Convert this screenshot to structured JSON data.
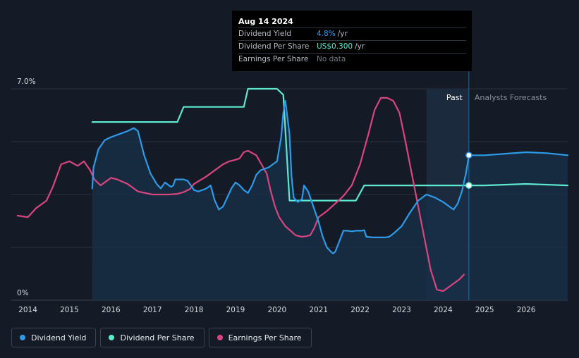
{
  "tooltip": {
    "date": "Aug 14 2024",
    "rows": [
      {
        "label": "Dividend Yield",
        "value": "4.8%",
        "unit": "/yr",
        "color": "#2e9be8"
      },
      {
        "label": "Dividend Per Share",
        "value": "US$0.300",
        "unit": "/yr",
        "color": "#5de8cf"
      },
      {
        "label": "Earnings Per Share",
        "value": "No data",
        "unit": "",
        "color": "#737884"
      }
    ]
  },
  "region_labels": {
    "past": "Past",
    "forecast": "Analysts Forecasts"
  },
  "legend": [
    {
      "label": "Dividend Yield",
      "color": "#2e9be8"
    },
    {
      "label": "Dividend Per Share",
      "color": "#5de8cf"
    },
    {
      "label": "Earnings Per Share",
      "color": "#d8457f"
    }
  ],
  "chart_data": {
    "type": "line",
    "title": "",
    "xlabel": "",
    "ylabel": "",
    "ylim": [
      0,
      7.0
    ],
    "xlim": [
      2013.6,
      2027.0
    ],
    "y_tick_labels": [
      {
        "value": 7.0,
        "label": "7.0%"
      },
      {
        "value": 0,
        "label": "0%"
      }
    ],
    "x_tick_labels": [
      "2014",
      "2015",
      "2016",
      "2017",
      "2018",
      "2019",
      "2020",
      "2021",
      "2022",
      "2023",
      "2024",
      "2025",
      "2026"
    ],
    "x_ticks": [
      2014,
      2015,
      2016,
      2017,
      2018,
      2019,
      2020,
      2021,
      2022,
      2023,
      2024,
      2025,
      2026
    ],
    "past_end": 2024.62,
    "forecast_shade_start": 2023.6,
    "highlight_x": 2024.62,
    "series": [
      {
        "name": "Dividend Yield",
        "color": "#2e9be8",
        "x": [
          2015.55,
          2015.58,
          2015.7,
          2015.85,
          2016.0,
          2016.2,
          2016.4,
          2016.55,
          2016.65,
          2016.8,
          2016.95,
          2017.1,
          2017.2,
          2017.3,
          2017.45,
          2017.5,
          2017.55,
          2017.65,
          2017.75,
          2017.85,
          2018.0,
          2018.1,
          2018.2,
          2018.3,
          2018.4,
          2018.5,
          2018.6,
          2018.7,
          2018.8,
          2018.9,
          2019.0,
          2019.1,
          2019.2,
          2019.3,
          2019.4,
          2019.5,
          2019.6,
          2019.7,
          2019.8,
          2019.9,
          2020.0,
          2020.1,
          2020.15,
          2020.2,
          2020.3,
          2020.35,
          2020.4,
          2020.5,
          2020.6,
          2020.65,
          2020.75,
          2020.85,
          2021.0,
          2021.1,
          2021.2,
          2021.3,
          2021.35,
          2021.4,
          2021.5,
          2021.6,
          2021.7,
          2021.8,
          2021.9,
          2022.05,
          2022.1,
          2022.15,
          2022.3,
          2022.45,
          2022.6,
          2022.7,
          2022.8,
          2023.0,
          2023.2,
          2023.4,
          2023.6,
          2023.8,
          2024.0,
          2024.15,
          2024.25,
          2024.35,
          2024.45,
          2024.55,
          2024.62,
          2024.8,
          2025.0,
          2025.5,
          2026.0,
          2026.5,
          2027.0
        ],
        "y": [
          3.7,
          4.4,
          5.0,
          5.3,
          5.4,
          5.5,
          5.6,
          5.7,
          5.6,
          4.8,
          4.2,
          3.85,
          3.7,
          3.9,
          3.75,
          3.8,
          4.0,
          4.0,
          4.0,
          3.95,
          3.65,
          3.6,
          3.65,
          3.7,
          3.8,
          3.3,
          3.0,
          3.1,
          3.4,
          3.7,
          3.9,
          3.8,
          3.65,
          3.55,
          3.8,
          4.15,
          4.3,
          4.35,
          4.4,
          4.5,
          4.6,
          5.4,
          6.2,
          6.6,
          5.5,
          4.1,
          3.4,
          3.25,
          3.35,
          3.8,
          3.6,
          3.2,
          2.6,
          2.1,
          1.75,
          1.6,
          1.55,
          1.6,
          1.95,
          2.3,
          2.3,
          2.28,
          2.3,
          2.3,
          2.32,
          2.1,
          2.08,
          2.08,
          2.08,
          2.1,
          2.2,
          2.45,
          2.9,
          3.3,
          3.5,
          3.4,
          3.25,
          3.1,
          3.0,
          3.2,
          3.6,
          4.2,
          4.8,
          4.8,
          4.8,
          4.85,
          4.9,
          4.87,
          4.8
        ]
      },
      {
        "name": "Dividend Per Share",
        "color": "#5de8cf",
        "x": [
          2015.55,
          2016.0,
          2017.0,
          2017.6,
          2017.75,
          2018.0,
          2019.0,
          2019.2,
          2019.3,
          2019.5,
          2020.0,
          2020.15,
          2020.3,
          2021.0,
          2021.9,
          2022.1,
          2023.0,
          2024.0,
          2024.62,
          2025.0,
          2026.0,
          2027.0
        ],
        "y": [
          5.9,
          5.9,
          5.9,
          5.9,
          6.4,
          6.4,
          6.4,
          6.4,
          7.0,
          7.0,
          7.0,
          6.8,
          3.3,
          3.3,
          3.3,
          3.8,
          3.8,
          3.8,
          3.8,
          3.8,
          3.85,
          3.8
        ]
      },
      {
        "name": "Earnings Per Share",
        "color": "#d8457f",
        "x": [
          2013.75,
          2014.0,
          2014.2,
          2014.45,
          2014.6,
          2014.8,
          2015.0,
          2015.2,
          2015.35,
          2015.5,
          2015.6,
          2015.75,
          2015.9,
          2016.0,
          2016.15,
          2016.4,
          2016.65,
          2017.0,
          2017.4,
          2017.6,
          2017.75,
          2017.9,
          2018.0,
          2018.3,
          2018.5,
          2018.7,
          2018.85,
          2019.0,
          2019.1,
          2019.2,
          2019.3,
          2019.5,
          2019.75,
          2019.85,
          2019.95,
          2020.05,
          2020.2,
          2020.45,
          2020.6,
          2020.7,
          2020.8,
          2020.9,
          2021.0,
          2021.2,
          2021.4,
          2021.6,
          2021.8,
          2022.0,
          2022.2,
          2022.35,
          2022.5,
          2022.65,
          2022.8,
          2022.95,
          2023.1,
          2023.3,
          2023.5,
          2023.7,
          2023.85,
          2024.0,
          2024.2,
          2024.4,
          2024.5
        ],
        "y": [
          2.8,
          2.75,
          3.05,
          3.3,
          3.75,
          4.5,
          4.6,
          4.45,
          4.6,
          4.3,
          4.0,
          3.8,
          3.95,
          4.05,
          4.0,
          3.85,
          3.6,
          3.5,
          3.5,
          3.52,
          3.58,
          3.68,
          3.85,
          4.1,
          4.3,
          4.5,
          4.6,
          4.65,
          4.7,
          4.9,
          4.95,
          4.8,
          4.2,
          3.6,
          3.1,
          2.75,
          2.45,
          2.15,
          2.1,
          2.12,
          2.15,
          2.4,
          2.75,
          2.95,
          3.2,
          3.45,
          3.8,
          4.5,
          5.5,
          6.3,
          6.7,
          6.7,
          6.6,
          6.2,
          5.2,
          3.8,
          2.4,
          1.0,
          0.35,
          0.3,
          0.5,
          0.7,
          0.85
        ]
      }
    ]
  }
}
